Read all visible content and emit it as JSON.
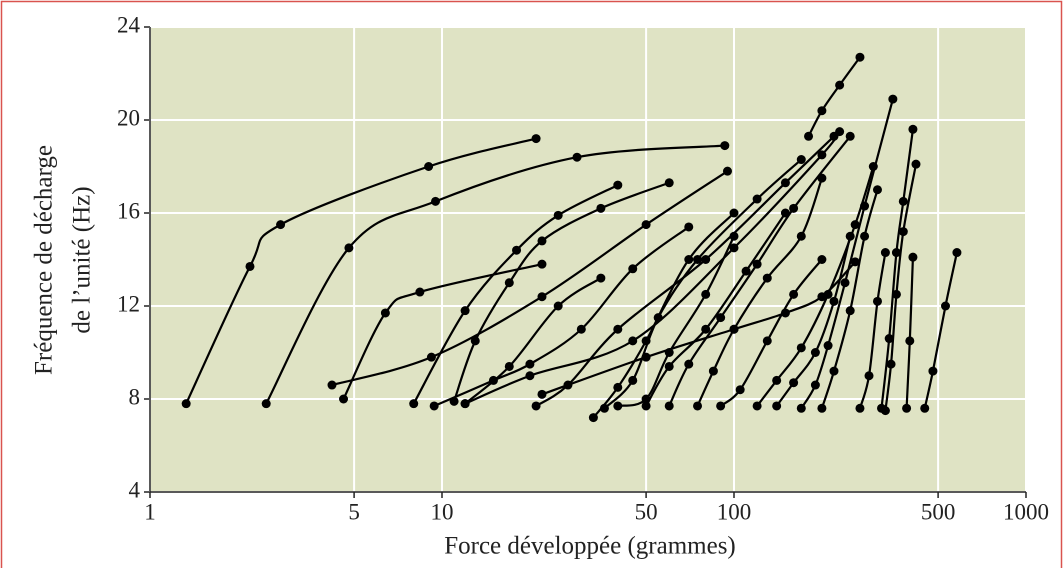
{
  "chart_data": {
    "type": "line",
    "xlabel": "Force développée (grammes)",
    "ylabel": [
      "Fréquence de décharge",
      "de l’unité (Hz)"
    ],
    "xscale": "log",
    "xlim": [
      1,
      1000
    ],
    "xticks": [
      1,
      5,
      10,
      50,
      100,
      500,
      1000
    ],
    "ylim": [
      4,
      24
    ],
    "yticks": [
      4,
      8,
      12,
      16,
      20,
      24
    ],
    "grid": true,
    "background": "#dfe3c4",
    "color": "#000000",
    "markers": true,
    "series": [
      {
        "x": [
          1.33,
          2.2,
          2.8,
          9,
          21
        ],
        "values": [
          7.8,
          13.7,
          15.5,
          18,
          19.2
        ]
      },
      {
        "x": [
          2.5,
          4.8,
          9.5,
          29,
          93
        ],
        "values": [
          7.8,
          14.5,
          16.5,
          18.4,
          18.9
        ]
      },
      {
        "x": [
          4.6,
          6.4,
          8.4,
          22
        ],
        "values": [
          8,
          11.7,
          12.6,
          13.8
        ]
      },
      {
        "x": [
          4.2,
          9.2,
          22,
          50,
          95
        ],
        "values": [
          8.6,
          9.8,
          12.4,
          15.5,
          17.8
        ]
      },
      {
        "x": [
          8,
          12,
          18,
          25,
          40
        ],
        "values": [
          7.8,
          11.8,
          14.4,
          15.9,
          17.2
        ]
      },
      {
        "x": [
          9.4,
          15,
          20,
          30,
          45,
          70
        ],
        "values": [
          7.7,
          8.8,
          9.5,
          11,
          13.6,
          15.4
        ]
      },
      {
        "x": [
          11,
          13,
          17,
          22,
          35,
          60
        ],
        "values": [
          7.9,
          10.5,
          13,
          14.8,
          16.2,
          17.3
        ]
      },
      {
        "x": [
          12,
          17,
          25,
          35
        ],
        "values": [
          7.8,
          9.4,
          12,
          13.2
        ]
      },
      {
        "x": [
          12,
          20,
          45,
          100,
          200,
          230
        ],
        "values": [
          7.8,
          9,
          10.5,
          14.5,
          18.5,
          19.5
        ]
      },
      {
        "x": [
          21,
          27,
          40,
          80,
          150,
          220
        ],
        "values": [
          7.7,
          8.6,
          11,
          14,
          17.3,
          19.3
        ]
      },
      {
        "x": [
          22,
          50,
          100,
          150,
          200,
          260
        ],
        "values": [
          8.2,
          9.8,
          11,
          11.7,
          12.4,
          13.9
        ]
      },
      {
        "x": [
          33,
          40,
          50,
          70,
          100
        ],
        "values": [
          7.2,
          8.5,
          10.5,
          14,
          16
        ]
      },
      {
        "x": [
          36,
          45,
          55,
          75,
          120,
          170
        ],
        "values": [
          7.6,
          8.8,
          11.5,
          14,
          16.6,
          18.3
        ]
      },
      {
        "x": [
          40,
          50,
          60,
          80,
          100
        ],
        "values": [
          7.7,
          8,
          10,
          12.5,
          15
        ]
      },
      {
        "x": [
          50,
          60,
          80,
          110,
          150
        ],
        "values": [
          7.7,
          9.4,
          11,
          13.5,
          16
        ]
      },
      {
        "x": [
          60,
          70,
          90,
          120,
          160,
          250
        ],
        "values": [
          7.7,
          9.5,
          11.5,
          13.8,
          16.2,
          19.3
        ]
      },
      {
        "x": [
          75,
          85,
          100,
          130,
          170,
          200
        ],
        "values": [
          7.7,
          9.2,
          11,
          13.2,
          15,
          17.5
        ]
      },
      {
        "x": [
          90,
          105,
          130,
          160,
          200
        ],
        "values": [
          7.7,
          8.4,
          10.5,
          12.5,
          14
        ]
      },
      {
        "x": [
          120,
          140,
          170,
          210,
          260,
          300
        ],
        "values": [
          7.7,
          8.8,
          10.2,
          12.5,
          15.5,
          18
        ]
      },
      {
        "x": [
          140,
          160,
          190,
          220,
          250
        ],
        "values": [
          7.7,
          8.7,
          10,
          12.2,
          15
        ]
      },
      {
        "x": [
          170,
          190,
          210,
          240,
          280,
          350
        ],
        "values": [
          7.6,
          8.6,
          10.3,
          13,
          16.3,
          20.9
        ]
      },
      {
        "x": [
          180,
          200,
          230,
          270
        ],
        "values": [
          19.3,
          20.4,
          21.5,
          22.7
        ]
      },
      {
        "x": [
          200,
          220,
          250,
          280,
          310
        ],
        "values": [
          7.6,
          9.2,
          11.8,
          15,
          17
        ]
      },
      {
        "x": [
          270,
          290,
          310,
          330
        ],
        "values": [
          7.6,
          9,
          12.2,
          14.3
        ]
      },
      {
        "x": [
          320,
          340,
          360,
          380,
          410
        ],
        "values": [
          7.6,
          10.6,
          14.3,
          16.5,
          19.6
        ]
      },
      {
        "x": [
          330,
          345,
          360,
          380,
          420
        ],
        "values": [
          7.5,
          9.5,
          12.5,
          15.2,
          18.1
        ]
      },
      {
        "x": [
          390,
          400,
          410
        ],
        "values": [
          7.6,
          10.5,
          14.1
        ]
      },
      {
        "x": [
          450,
          480,
          530,
          580
        ],
        "values": [
          7.6,
          9.2,
          12,
          14.3
        ]
      }
    ]
  }
}
